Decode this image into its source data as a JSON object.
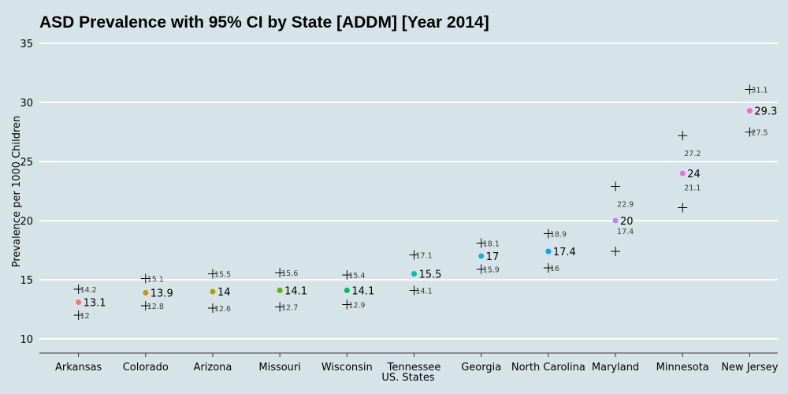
{
  "chart_data": {
    "type": "scatter",
    "title": "ASD Prevalence with 95% CI by State [ADDM] [Year 2014]",
    "xlabel_lines": [
      "",
      "US. States"
    ],
    "ylabel": "Prevalence per 1000 Children",
    "ylim": [
      9,
      36
    ],
    "yticks": [
      10,
      15,
      20,
      25,
      30,
      35
    ],
    "grid": true,
    "categories": [
      "Arkansas",
      "Colorado",
      "Arizona",
      "Missouri",
      "Wisconsin",
      "Tennessee",
      "Georgia",
      "North Carolina",
      "Maryland",
      "Minnesota",
      "New Jersey"
    ],
    "values": [
      13.1,
      13.9,
      14,
      14.1,
      14.1,
      15.5,
      17,
      17.4,
      20,
      24,
      29.3
    ],
    "lower": [
      12,
      12.8,
      12.6,
      12.7,
      12.9,
      14.1,
      15.9,
      16,
      17.4,
      21.1,
      27.5
    ],
    "upper": [
      14.2,
      15.1,
      15.5,
      15.6,
      15.4,
      17.1,
      18.1,
      18.9,
      22.9,
      27.2,
      31.1
    ],
    "colors": [
      "#f8766d",
      "#db8e00",
      "#aea200",
      "#64b200",
      "#00bd5c",
      "#00c1a7",
      "#00badb",
      "#00a6ff",
      "#b385ff",
      "#ef67eb",
      "#ff63b6"
    ]
  }
}
